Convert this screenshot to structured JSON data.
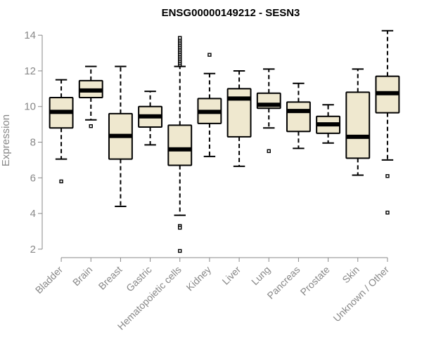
{
  "chart_data": {
    "type": "box",
    "title": "ENSG00000149212 - SESN3",
    "ylabel": "Expression",
    "xlabel": "",
    "ylim": [
      1.8,
      14.4
    ],
    "yticks": [
      2,
      4,
      6,
      8,
      10,
      12,
      14
    ],
    "box_fill": "#efe8cf",
    "categories": [
      "Bladder",
      "Brain",
      "Breast",
      "Gastric",
      "Hematopoietic cells",
      "Kidney",
      "Liver",
      "Lung",
      "Pancreas",
      "Prostate",
      "Skin",
      "Unknown / Other"
    ],
    "boxes": [
      {
        "whisker_low": 7.05,
        "q1": 8.8,
        "median": 9.7,
        "q3": 10.5,
        "whisker_high": 11.5,
        "outliers": [
          5.8
        ]
      },
      {
        "whisker_low": 9.25,
        "q1": 10.5,
        "median": 10.9,
        "q3": 11.45,
        "whisker_high": 12.25,
        "outliers": [
          8.9
        ]
      },
      {
        "whisker_low": 4.4,
        "q1": 7.05,
        "median": 8.35,
        "q3": 9.6,
        "whisker_high": 12.25,
        "outliers": []
      },
      {
        "whisker_low": 7.85,
        "q1": 8.85,
        "median": 9.45,
        "q3": 10.0,
        "whisker_high": 10.85,
        "outliers": []
      },
      {
        "whisker_low": 3.9,
        "q1": 6.7,
        "median": 7.6,
        "q3": 8.95,
        "whisker_high": 12.25,
        "outliers": [
          3.3,
          3.2,
          1.9,
          12.35,
          12.45,
          12.55,
          12.65,
          12.75,
          12.85,
          12.95,
          13.05,
          13.15,
          13.25,
          13.35,
          13.45,
          13.55,
          13.65,
          13.75,
          13.85
        ]
      },
      {
        "whisker_low": 7.2,
        "q1": 9.05,
        "median": 9.7,
        "q3": 10.45,
        "whisker_high": 11.85,
        "outliers": [
          12.9
        ]
      },
      {
        "whisker_low": 6.65,
        "q1": 8.3,
        "median": 10.45,
        "q3": 11.0,
        "whisker_high": 12.0,
        "outliers": []
      },
      {
        "whisker_low": 8.8,
        "q1": 9.9,
        "median": 10.1,
        "q3": 10.75,
        "whisker_high": 12.1,
        "outliers": [
          7.5
        ]
      },
      {
        "whisker_low": 7.65,
        "q1": 8.6,
        "median": 9.75,
        "q3": 10.25,
        "whisker_high": 11.3,
        "outliers": []
      },
      {
        "whisker_low": 7.95,
        "q1": 8.5,
        "median": 9.0,
        "q3": 9.45,
        "whisker_high": 10.1,
        "outliers": []
      },
      {
        "whisker_low": 6.15,
        "q1": 7.1,
        "median": 8.3,
        "q3": 10.8,
        "whisker_high": 12.1,
        "outliers": []
      },
      {
        "whisker_low": 7.0,
        "q1": 9.65,
        "median": 10.75,
        "q3": 11.7,
        "whisker_high": 14.25,
        "outliers": [
          6.1,
          4.05
        ]
      }
    ]
  }
}
